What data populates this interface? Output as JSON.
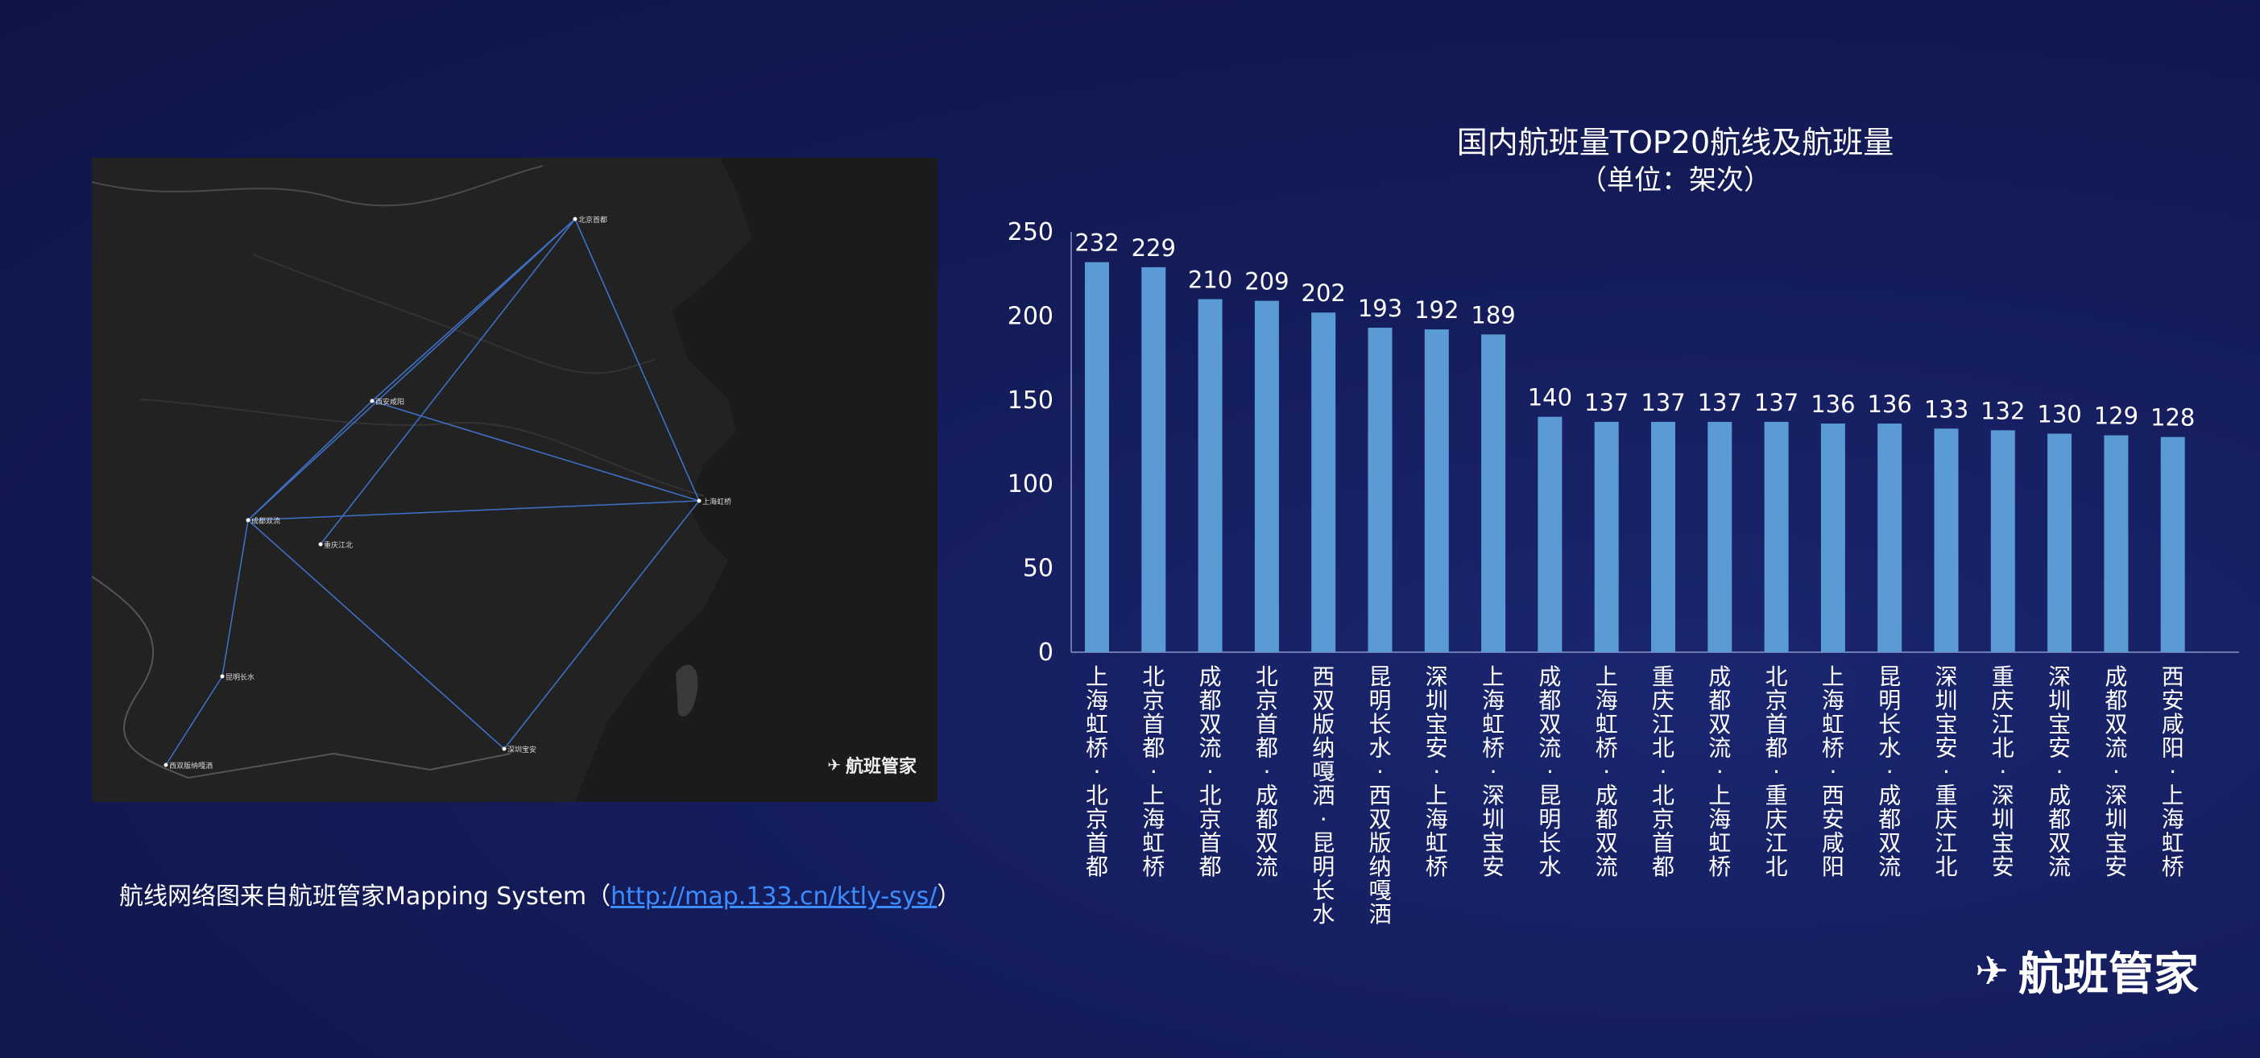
{
  "map": {
    "logo_text": "航班管家",
    "cities": [
      {
        "name": "北京首都"
      },
      {
        "name": "西安咸阳"
      },
      {
        "name": "上海虹桥"
      },
      {
        "name": "成都双流"
      },
      {
        "name": "重庆江北"
      },
      {
        "name": "昆明长水"
      },
      {
        "name": "西双版纳嘎洒"
      },
      {
        "name": "深圳宝安"
      }
    ]
  },
  "caption": {
    "prefix": "航线网络图来自航班管家Mapping System（",
    "link": "http://map.133.cn/ktly-sys/",
    "suffix": "）"
  },
  "brand": {
    "logo_text": "航班管家"
  },
  "colors": {
    "bar": "#5b9bd5",
    "background": "#141c5a",
    "route_line": "#3e6fc4"
  },
  "chart_data": {
    "type": "bar",
    "title": "国内航班量TOP20航线及航班量",
    "subtitle": "（单位：架次）",
    "ylim": [
      0,
      250
    ],
    "yticks": [
      0,
      50,
      100,
      150,
      200,
      250
    ],
    "grid": false,
    "categories": [
      "上海虹桥-北京首都",
      "北京首都-上海虹桥",
      "成都双流-北京首都",
      "北京首都-成都双流",
      "西双版纳嘎洒-昆明长水",
      "昆明长水-西双版纳嘎洒",
      "深圳宝安-上海虹桥",
      "上海虹桥-深圳宝安",
      "成都双流-昆明长水",
      "上海虹桥-成都双流",
      "重庆江北-北京首都",
      "成都双流-上海虹桥",
      "北京首都-重庆江北",
      "上海虹桥-西安咸阳",
      "昆明长水-成都双流",
      "深圳宝安-重庆江北",
      "重庆江北-深圳宝安",
      "深圳宝安-成都双流",
      "成都双流-深圳宝安",
      "西安咸阳-上海虹桥"
    ],
    "values": [
      232,
      229,
      210,
      209,
      202,
      193,
      192,
      189,
      140,
      137,
      137,
      137,
      137,
      136,
      136,
      133,
      132,
      130,
      129,
      128
    ]
  }
}
